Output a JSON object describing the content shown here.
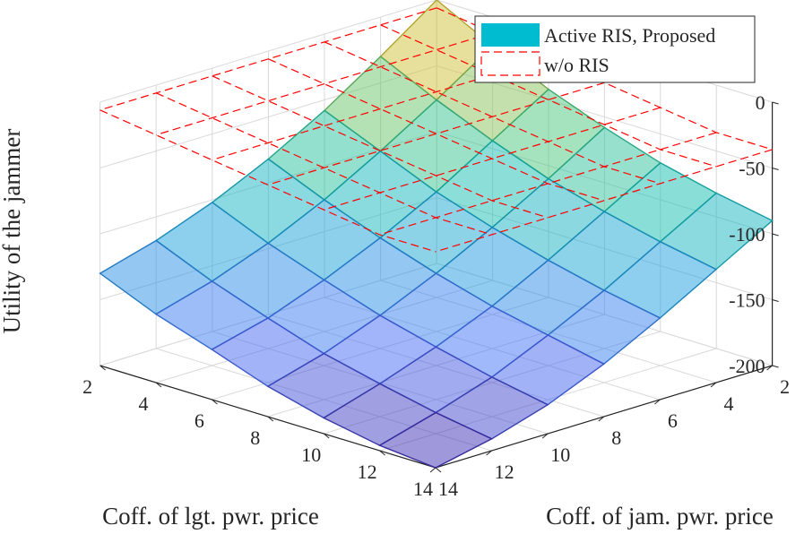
{
  "chart_data": {
    "type": "surface3d",
    "title": "",
    "xlabel": "Coff. of lgt. pwr. price",
    "ylabel": "Coff. of jam. pwr. price",
    "zlabel": "Utility of the jammer",
    "x_ticks": [
      2,
      4,
      6,
      8,
      10,
      12,
      14
    ],
    "y_ticks": [
      2,
      4,
      6,
      8,
      10,
      12,
      14
    ],
    "z_ticks": [
      0,
      -50,
      -100,
      -150,
      -200
    ],
    "xlim": [
      2,
      14
    ],
    "ylim": [
      2,
      14
    ],
    "zlim": [
      -200,
      0
    ],
    "grid": true,
    "legend_position": "top-right",
    "series": [
      {
        "name": "Active RIS, Proposed",
        "style": "surface",
        "colormap": "parula",
        "x": [
          2,
          4,
          6,
          8,
          10,
          12,
          14
        ],
        "y": [
          2,
          4,
          6,
          8,
          10,
          12,
          14
        ],
        "z": [
          [
            0,
            -30,
            -58,
            -82,
            -102,
            -118,
            -130
          ],
          [
            -22,
            -50,
            -76,
            -100,
            -120,
            -136,
            -148
          ],
          [
            -42,
            -68,
            -94,
            -116,
            -135,
            -151,
            -162
          ],
          [
            -58,
            -84,
            -108,
            -130,
            -149,
            -165,
            -177
          ],
          [
            -72,
            -96,
            -120,
            -142,
            -160,
            -175,
            -188
          ],
          [
            -82,
            -106,
            -130,
            -151,
            -170,
            -184,
            -196
          ],
          [
            -90,
            -114,
            -138,
            -160,
            -178,
            -191,
            -200
          ]
        ]
      },
      {
        "name": "w/o RIS",
        "style": "wireframe-dashed",
        "color": "#ff0000",
        "x": [
          2,
          4,
          6,
          8,
          10,
          12,
          14
        ],
        "y": [
          2,
          4,
          6,
          8,
          10,
          12,
          14
        ],
        "z": [
          [
            -6,
            -6,
            -6,
            -6,
            -6,
            -6,
            -6
          ],
          [
            -12,
            -12,
            -12,
            -12,
            -12,
            -12,
            -12
          ],
          [
            -18,
            -18,
            -18,
            -18,
            -18,
            -18,
            -18
          ],
          [
            -24,
            -24,
            -24,
            -24,
            -24,
            -24,
            -24
          ],
          [
            -30,
            -30,
            -30,
            -30,
            -30,
            -30,
            -30
          ],
          [
            -36,
            -36,
            -36,
            -36,
            -36,
            -36,
            -36
          ],
          [
            -36,
            -36,
            -36,
            -36,
            -36,
            -36,
            -36
          ]
        ]
      }
    ],
    "legend_swatch_color": "#00bcd0"
  }
}
